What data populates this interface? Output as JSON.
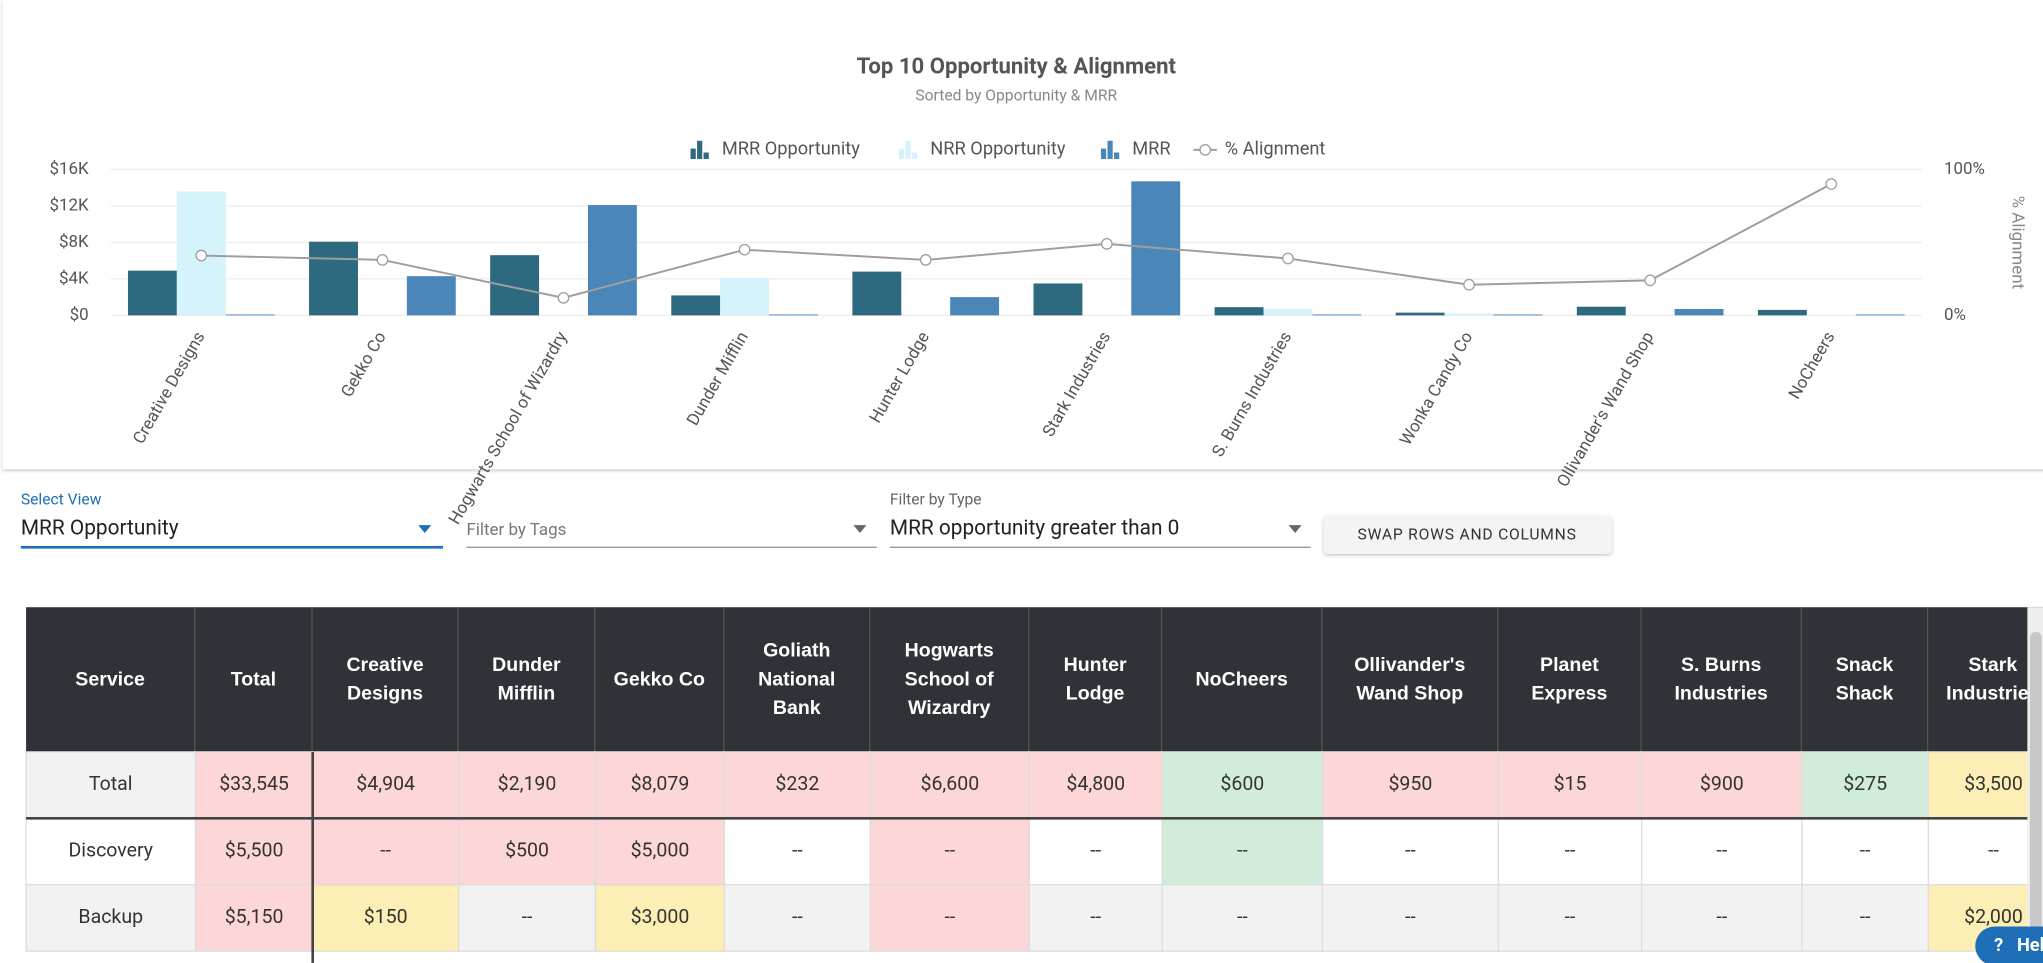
{
  "chart_data": {
    "type": "bar",
    "title": "Top 10 Opportunity & Alignment",
    "subtitle": "Sorted by Opportunity & MRR",
    "categories": [
      "Creative Designs",
      "Gekko Co",
      "Hogwarts School of Wizardry",
      "Dunder Mifflin",
      "Hunter Lodge",
      "Stark Industries",
      "S. Burns Industries",
      "Wonka Candy Co",
      "Ollivander's Wand Shop",
      "NoCheers"
    ],
    "series": [
      {
        "name": "MRR Opportunity",
        "color": "#2d6a7f",
        "values": [
          4904,
          8079,
          6600,
          2190,
          4800,
          3500,
          900,
          300,
          950,
          600
        ]
      },
      {
        "name": "NRR Opportunity",
        "color": "#d4f3fb",
        "values": [
          13600,
          0,
          0,
          4100,
          0,
          0,
          700,
          200,
          0,
          0
        ]
      },
      {
        "name": "MRR",
        "color": "#4a86b8",
        "values": [
          100,
          4300,
          12100,
          100,
          2000,
          14700,
          100,
          100,
          700,
          100
        ]
      },
      {
        "name": "% Alignment",
        "color": "#9e9e9e",
        "type": "line",
        "axis": "y2",
        "values": [
          41,
          38,
          12,
          45,
          38,
          49,
          39,
          21,
          24,
          90
        ]
      }
    ],
    "ylim": [
      0,
      16000
    ],
    "yticks": [
      {
        "value": 0,
        "label": "$0"
      },
      {
        "value": 4000,
        "label": "$4K"
      },
      {
        "value": 8000,
        "label": "$8K"
      },
      {
        "value": 12000,
        "label": "$12K"
      },
      {
        "value": 16000,
        "label": "$16K"
      }
    ],
    "y2lim": [
      0,
      100
    ],
    "y2ticks": [
      {
        "value": 0,
        "label": "0%"
      },
      {
        "value": 100,
        "label": "100%"
      }
    ],
    "y2label": "% Alignment",
    "grid": true,
    "legend": "top"
  },
  "controls": {
    "select_view_label": "Select View",
    "select_view_value": "MRR Opportunity",
    "tags_placeholder": "Filter by Tags",
    "type_label": "Filter by Type",
    "type_value": "MRR opportunity greater than 0",
    "swap_button": "SWAP ROWS AND COLUMNS",
    "help": "Help"
  },
  "table": {
    "columns": [
      "Service",
      "Total",
      "Creative Designs",
      "Dunder Mifflin",
      "Gekko Co",
      "Goliath National Bank",
      "Hogwarts School of Wizardry",
      "Hunter Lodge",
      "NoCheers",
      "Ollivander's Wand Shop",
      "Planet Express",
      "S. Burns Industries",
      "Snack Shack",
      "Stark Industries"
    ],
    "rows": [
      {
        "cells": [
          "Total",
          "$33,545",
          "$4,904",
          "$2,190",
          "$8,079",
          "$232",
          "$6,600",
          "$4,800",
          "$600",
          "$950",
          "$15",
          "$900",
          "$275",
          "$3,500"
        ],
        "colors": [
          "#f2f2f2",
          "#fdd6d7",
          "#fdd6d7",
          "#fdd6d7",
          "#fdd6d7",
          "#fdd6d7",
          "#fdd6d7",
          "#fdd6d7",
          "#d2ecdc",
          "#fdd6d7",
          "#fdd6d7",
          "#fdd6d7",
          "#d2ecdc",
          "#fdeeb5"
        ]
      },
      {
        "cells": [
          "Discovery",
          "$5,500",
          "--",
          "$500",
          "$5,000",
          "--",
          "--",
          "--",
          "--",
          "--",
          "--",
          "--",
          "--",
          "--"
        ],
        "colors": [
          "#ffffff",
          "#fdd6d7",
          "#fdd6d7",
          "#fdd6d7",
          "#fdd6d7",
          "#ffffff",
          "#fdd6d7",
          "#ffffff",
          "#d2ecdc",
          "#ffffff",
          "#ffffff",
          "#ffffff",
          "#ffffff",
          "#ffffff"
        ]
      },
      {
        "cells": [
          "Backup",
          "$5,150",
          "$150",
          "--",
          "$3,000",
          "--",
          "--",
          "--",
          "--",
          "--",
          "--",
          "--",
          "--",
          "$2,000"
        ],
        "colors": [
          "#f2f2f2",
          "#fdd6d7",
          "#fdeeb5",
          "#f2f2f2",
          "#fdeeb5",
          "#f2f2f2",
          "#fdd6d7",
          "#f2f2f2",
          "#f2f2f2",
          "#f2f2f2",
          "#f2f2f2",
          "#f2f2f2",
          "#f2f2f2",
          "#fdeeb5"
        ]
      }
    ]
  }
}
